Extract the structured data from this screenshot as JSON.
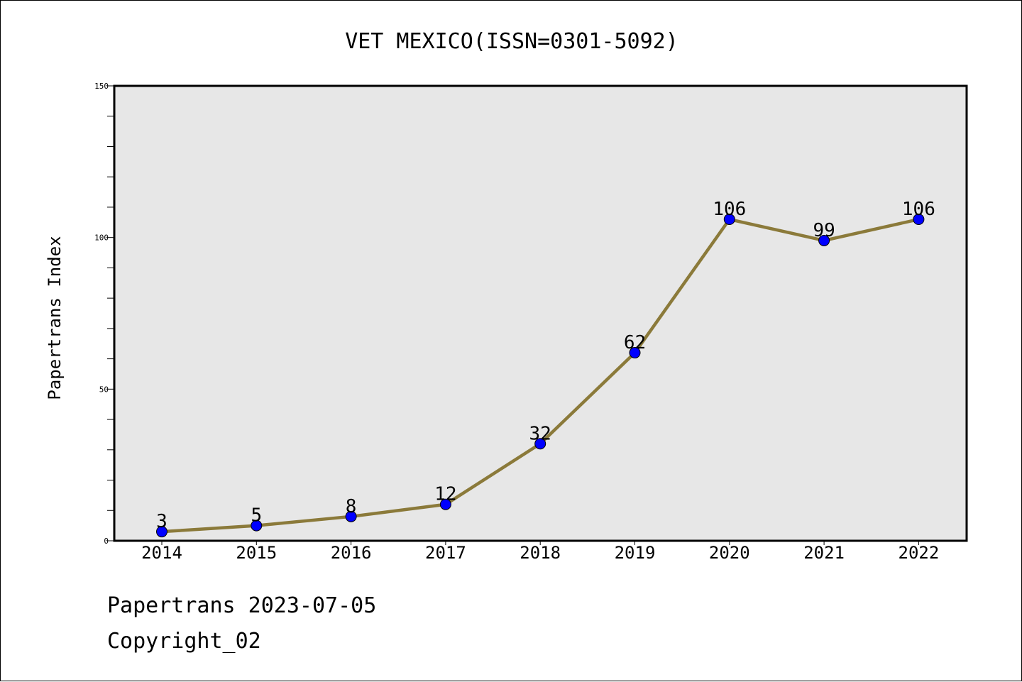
{
  "chart_data": {
    "type": "line",
    "title": "VET MEXICO(ISSN=0301-5092)",
    "xlabel": "",
    "ylabel": "Papertrans Index",
    "x": [
      "2014",
      "2015",
      "2016",
      "2017",
      "2018",
      "2019",
      "2020",
      "2021",
      "2022"
    ],
    "series": [
      {
        "values": [
          3,
          5,
          8,
          12,
          32,
          62,
          106,
          99,
          106
        ]
      }
    ],
    "data_labels": [
      "3",
      "5",
      "8",
      "12",
      "32",
      "62",
      "106",
      "99",
      "106"
    ],
    "ylim": [
      0,
      150
    ],
    "yticks": [
      "0",
      "50",
      "100",
      "150"
    ],
    "grid": false,
    "line_color": "#8B7A3A",
    "marker_color": "#0000FF",
    "plot_background": "#E7E7E7"
  },
  "footer": {
    "line1": "Papertrans 2023-07-05",
    "line2": "Copyright_02"
  }
}
